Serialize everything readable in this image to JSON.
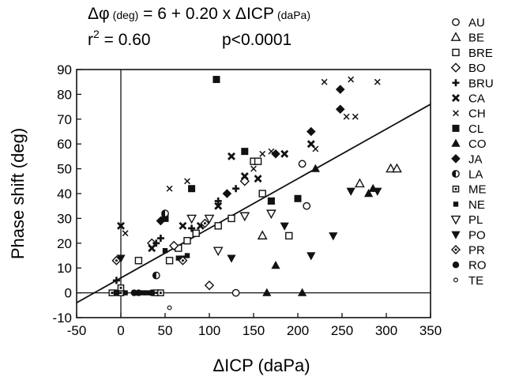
{
  "chart_data": {
    "type": "scatter",
    "equation": {
      "lhs": "Δφ",
      "lhs_unit": "(deg)",
      "rhs": " = 6 + 0.20 x ΔICP",
      "rhs_unit": "(daPa)",
      "r2_prefix": "r",
      "r2_sup": "2",
      "r2_value": " = 0.60",
      "p_value": "p<0.0001"
    },
    "xlabel": "ΔICP (daPa)",
    "ylabel": "Phase shift (deg)",
    "xlim": [
      -50,
      350
    ],
    "ylim": [
      -10,
      90
    ],
    "xticks": [
      "-50",
      "0",
      "50",
      "100",
      "150",
      "200",
      "250",
      "300",
      "350"
    ],
    "yticks": [
      "-10",
      "0",
      "10",
      "20",
      "30",
      "40",
      "50",
      "60",
      "70",
      "80",
      "90"
    ],
    "regression": {
      "intercept": 6,
      "slope": 0.2
    },
    "reference_lines": {
      "x": 0,
      "y": 0
    },
    "legend_position": "right",
    "series": [
      {
        "name": "AU",
        "marker": "circle-open",
        "points": [
          [
            205,
            52
          ],
          [
            210,
            35
          ],
          [
            130,
            0
          ]
        ]
      },
      {
        "name": "BE",
        "marker": "triangle-open",
        "points": [
          [
            160,
            23
          ],
          [
            270,
            44
          ],
          [
            305,
            50
          ],
          [
            312,
            50
          ]
        ]
      },
      {
        "name": "BRE",
        "marker": "square-open",
        "points": [
          [
            20,
            13
          ],
          [
            55,
            13
          ],
          [
            65,
            18
          ],
          [
            75,
            21
          ],
          [
            85,
            24
          ],
          [
            110,
            27
          ],
          [
            125,
            30
          ],
          [
            150,
            53
          ],
          [
            155,
            53
          ],
          [
            160,
            40
          ],
          [
            190,
            23
          ]
        ]
      },
      {
        "name": "BO",
        "marker": "diamond-open",
        "points": [
          [
            35,
            20
          ],
          [
            60,
            19
          ],
          [
            100,
            3
          ],
          [
            140,
            45
          ]
        ]
      },
      {
        "name": "BRU",
        "marker": "plus",
        "points": [
          [
            -5,
            5
          ],
          [
            40,
            20
          ],
          [
            45,
            22
          ],
          [
            80,
            26
          ],
          [
            110,
            37
          ],
          [
            130,
            42
          ]
        ]
      },
      {
        "name": "CA",
        "marker": "x-bold",
        "points": [
          [
            0,
            27
          ],
          [
            35,
            18
          ],
          [
            70,
            27
          ],
          [
            90,
            27
          ],
          [
            110,
            35
          ],
          [
            125,
            55
          ],
          [
            140,
            47
          ],
          [
            155,
            46
          ],
          [
            170,
            37
          ],
          [
            185,
            56
          ],
          [
            215,
            60
          ]
        ]
      },
      {
        "name": "CH",
        "marker": "x",
        "points": [
          [
            5,
            24
          ],
          [
            55,
            42
          ],
          [
            75,
            45
          ],
          [
            150,
            50
          ],
          [
            160,
            56
          ],
          [
            170,
            57
          ],
          [
            220,
            58
          ],
          [
            230,
            85
          ],
          [
            255,
            71
          ],
          [
            265,
            71
          ],
          [
            260,
            86
          ],
          [
            290,
            85
          ]
        ]
      },
      {
        "name": "CL",
        "marker": "square",
        "points": [
          [
            50,
            30
          ],
          [
            80,
            42
          ],
          [
            108,
            86
          ],
          [
            140,
            57
          ],
          [
            170,
            37
          ],
          [
            200,
            38
          ]
        ]
      },
      {
        "name": "CO",
        "marker": "triangle",
        "points": [
          [
            165,
            0
          ],
          [
            175,
            11
          ],
          [
            205,
            0
          ],
          [
            220,
            50
          ],
          [
            280,
            40
          ],
          [
            285,
            42
          ]
        ]
      },
      {
        "name": "JA",
        "marker": "diamond",
        "points": [
          [
            45,
            29
          ],
          [
            120,
            40
          ],
          [
            175,
            56
          ],
          [
            215,
            65
          ],
          [
            248,
            74
          ],
          [
            248,
            82
          ]
        ]
      },
      {
        "name": "LA",
        "marker": "circle-half",
        "points": [
          [
            50,
            32
          ],
          [
            40,
            7
          ]
        ]
      },
      {
        "name": "ME",
        "marker": "square-dot",
        "points": [
          [
            0,
            0
          ],
          [
            -10,
            0
          ],
          [
            0,
            2
          ],
          [
            40,
            0
          ],
          [
            45,
            0
          ]
        ]
      },
      {
        "name": "NE",
        "marker": "square-small",
        "points": [
          [
            5,
            0
          ],
          [
            25,
            0
          ],
          [
            30,
            0
          ],
          [
            50,
            17
          ],
          [
            65,
            14
          ],
          [
            70,
            14
          ],
          [
            75,
            15
          ]
        ]
      },
      {
        "name": "PL",
        "marker": "triangle-down-open",
        "points": [
          [
            80,
            30
          ],
          [
            100,
            30
          ],
          [
            110,
            17
          ],
          [
            140,
            31
          ],
          [
            170,
            32
          ]
        ]
      },
      {
        "name": "PO",
        "marker": "triangle-down",
        "points": [
          [
            0,
            14
          ],
          [
            125,
            14
          ],
          [
            185,
            27
          ],
          [
            215,
            15
          ],
          [
            240,
            23
          ],
          [
            260,
            41
          ],
          [
            290,
            41
          ]
        ]
      },
      {
        "name": "PR",
        "marker": "diamond-dot",
        "points": [
          [
            -5,
            13
          ],
          [
            70,
            13
          ],
          [
            95,
            28
          ]
        ]
      },
      {
        "name": "RO",
        "marker": "circle",
        "points": [
          [
            -5,
            0
          ],
          [
            15,
            0
          ],
          [
            20,
            0
          ],
          [
            35,
            0
          ]
        ]
      },
      {
        "name": "TE",
        "marker": "circle-small",
        "points": [
          [
            55,
            -6
          ]
        ]
      }
    ]
  }
}
